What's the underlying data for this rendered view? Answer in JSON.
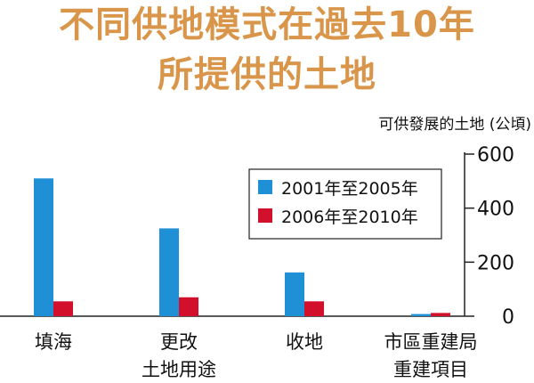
{
  "chart_data": {
    "type": "bar",
    "title_lines": [
      "不同供地模式在過去10年",
      "所提供的土地"
    ],
    "ylabel": "可供發展的土地 (公頃)",
    "categories": [
      "填海",
      "更改\n土地用途",
      "收地",
      "市區重建局\n重建項目"
    ],
    "series": [
      {
        "name": "2001年至2005年",
        "values": [
          510,
          325,
          162,
          8
        ]
      },
      {
        "name": "2006年至2010年",
        "values": [
          55,
          70,
          55,
          12
        ]
      }
    ],
    "ylim": [
      0,
      600
    ],
    "yticks": [
      0,
      200,
      400,
      600
    ],
    "y_axis_side": "right",
    "legend_position": "top-right",
    "grid": false,
    "colors": [
      "#1f8fd6",
      "#d3102b"
    ],
    "title_color": "#d9964a"
  }
}
